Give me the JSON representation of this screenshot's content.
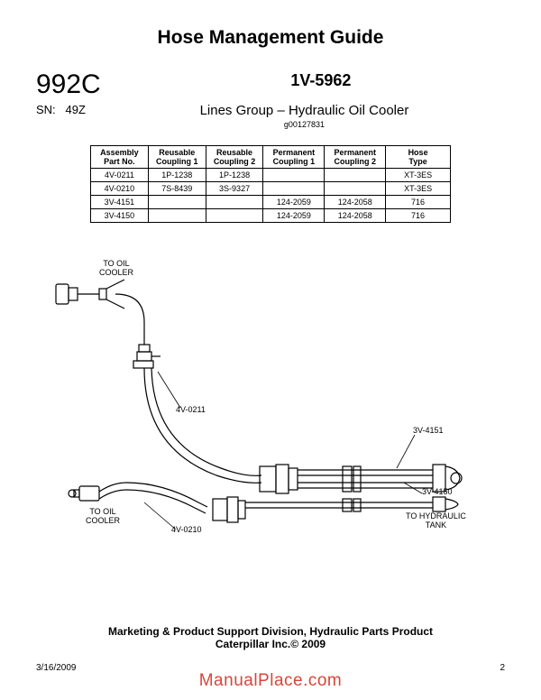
{
  "title": "Hose Management Guide",
  "model": "992C",
  "sn_label": "SN:",
  "sn_value": "49Z",
  "partno": "1V-5962",
  "subtitle": "Lines Group – Hydraulic Oil Cooler",
  "gcode": "g00127831",
  "table": {
    "columns": [
      "Assembly\nPart No.",
      "Reusable\nCoupling 1",
      "Reusable\nCoupling 2",
      "Permanent\nCoupling 1",
      "Permanent\nCoupling 2",
      "Hose\nType"
    ],
    "rows": [
      [
        "4V-0211",
        "1P-1238",
        "1P-1238",
        "",
        "",
        "XT-3ES"
      ],
      [
        "4V-0210",
        "7S-8439",
        "3S-9327",
        "",
        "",
        "XT-3ES"
      ],
      [
        "3V-4151",
        "",
        "",
        "124-2059",
        "124-2058",
        "716"
      ],
      [
        "3V-4150",
        "",
        "",
        "124-2059",
        "124-2058",
        "716"
      ]
    ],
    "col_widths": [
      "16%",
      "16%",
      "16%",
      "17%",
      "17%",
      "18%"
    ],
    "border_color": "#000000",
    "font_size": 9
  },
  "diagram": {
    "labels": {
      "to_oil_cooler_top": "TO OIL\nCOOLER",
      "to_oil_cooler_bottom": "TO OIL\nCOOLER",
      "to_hydraulic_tank": "TO HYDRAULIC\nTANK",
      "p_4v0211": "4V-0211",
      "p_4v0210": "4V-0210",
      "p_3v4151": "3V-4151",
      "p_3v4150": "3V-4150"
    },
    "stroke_color": "#000000",
    "stroke_width": 1.2,
    "label_fontsize": 9
  },
  "footer_line1": "Marketing & Product Support Division, Hydraulic Parts Product",
  "footer_line2": "Caterpillar Inc.© 2009",
  "date": "3/16/2009",
  "page": "2",
  "watermark": "ManualPlace.com",
  "watermark_color": "#d9453a"
}
